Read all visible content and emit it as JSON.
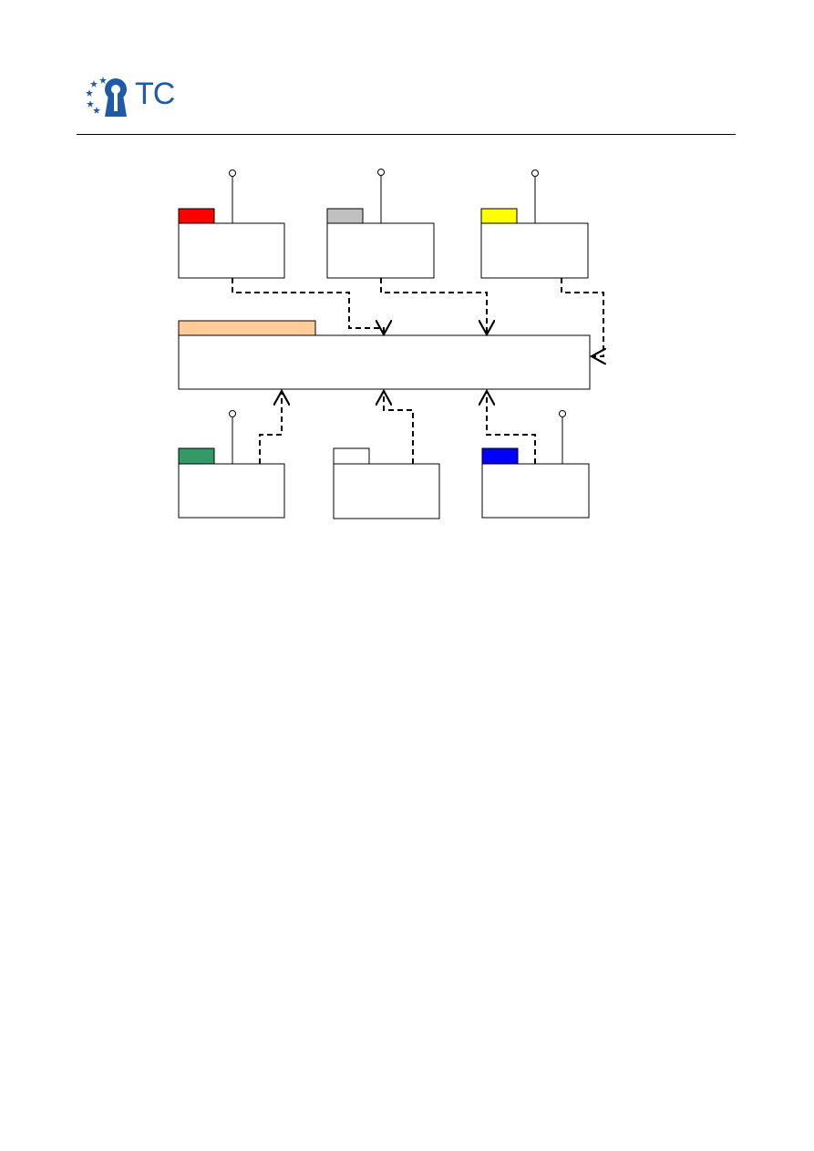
{
  "header": {
    "logo_text": "TC",
    "logo_color": "#1f5aa8",
    "logo_icon": "keyhole-stars-icon"
  },
  "diagram": {
    "type": "package-dependency-diagram",
    "central_package": {
      "tab_color": "#ffcc99",
      "label": ""
    },
    "packages": [
      {
        "id": "pkg-red",
        "tab_color": "#ff0000",
        "has_interface": true,
        "label": ""
      },
      {
        "id": "pkg-gray",
        "tab_color": "#c0c0c0",
        "has_interface": true,
        "label": ""
      },
      {
        "id": "pkg-yellow",
        "tab_color": "#ffff00",
        "has_interface": true,
        "label": ""
      },
      {
        "id": "pkg-green",
        "tab_color": "#339966",
        "has_interface": true,
        "label": ""
      },
      {
        "id": "pkg-white",
        "tab_color": "#ffffff",
        "has_interface": false,
        "label": ""
      },
      {
        "id": "pkg-blue",
        "tab_color": "#0000ff",
        "has_interface": true,
        "label": ""
      }
    ],
    "dependencies": [
      {
        "from": "pkg-red",
        "to": "central"
      },
      {
        "from": "pkg-gray",
        "to": "central"
      },
      {
        "from": "pkg-yellow",
        "to": "central"
      },
      {
        "from": "pkg-green",
        "to": "central"
      },
      {
        "from": "pkg-white",
        "to": "central"
      },
      {
        "from": "pkg-blue",
        "to": "central"
      }
    ]
  }
}
